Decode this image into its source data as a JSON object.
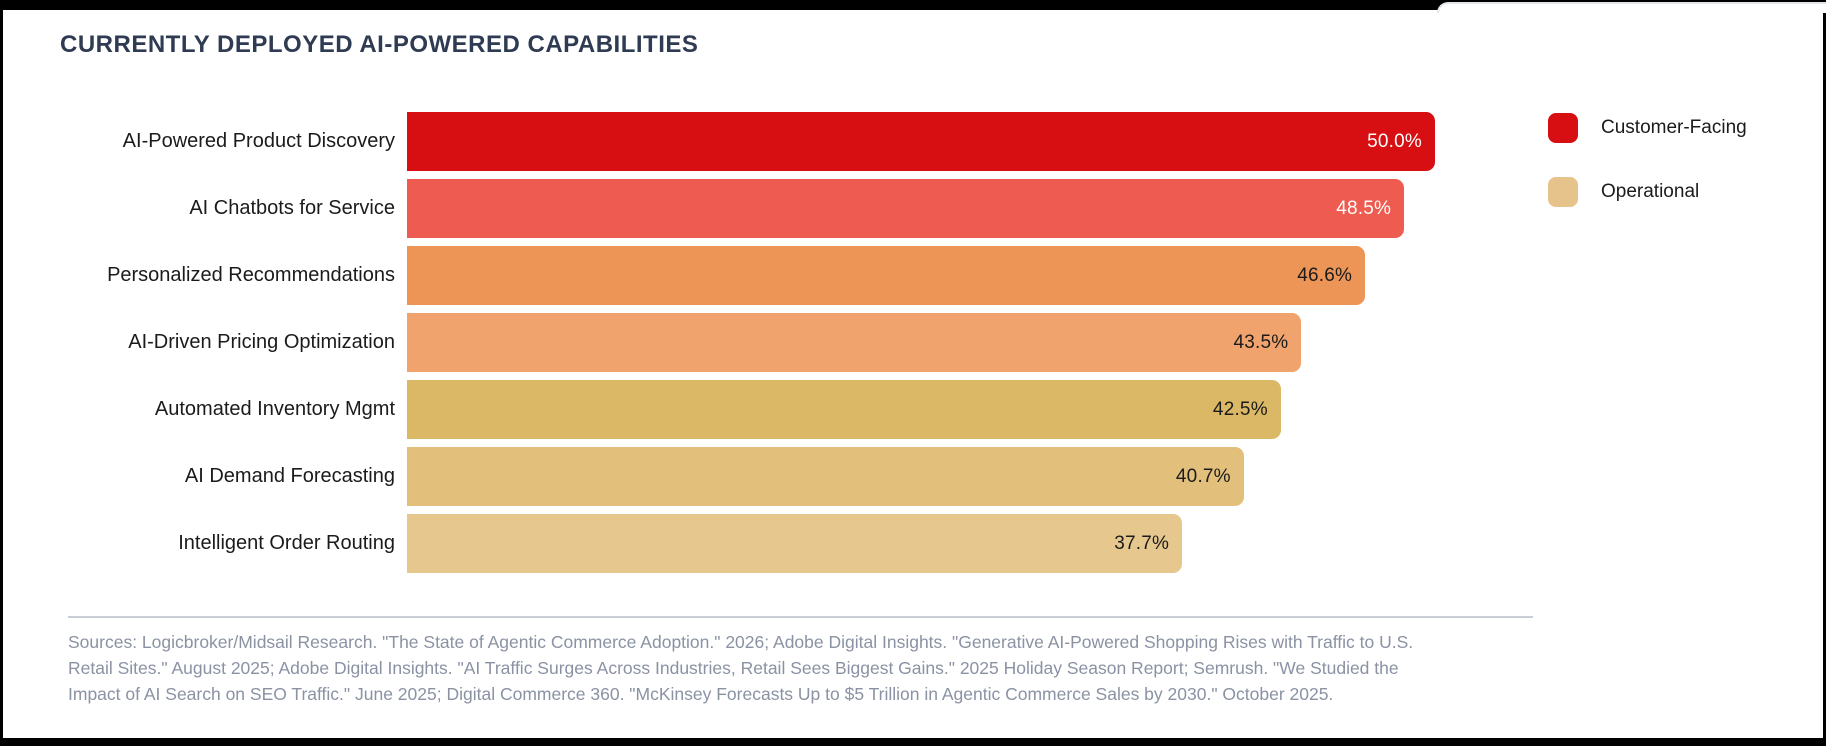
{
  "title": "CURRENTLY DEPLOYED AI-POWERED CAPABILITIES",
  "chart_data": {
    "type": "bar",
    "orientation": "horizontal",
    "title": "CURRENTLY DEPLOYED AI-POWERED CAPABILITIES",
    "value_unit": "%",
    "xlim": [
      0,
      55
    ],
    "grid": false,
    "categories": [
      "AI-Powered Product Discovery",
      "AI Chatbots for Service",
      "Personalized Recommendations",
      "AI-Driven Pricing Optimization",
      "Automated Inventory Mgmt",
      "AI Demand Forecasting",
      "Intelligent Order Routing"
    ],
    "values": [
      50.0,
      48.5,
      46.6,
      43.5,
      42.5,
      40.7,
      37.7
    ],
    "bars": [
      {
        "label": "AI-Powered Product Discovery",
        "value": 50.0,
        "value_label": "50.0%",
        "color": "#d70e12",
        "value_color": "#ffffff"
      },
      {
        "label": "AI Chatbots for Service",
        "value": 48.5,
        "value_label": "48.5%",
        "color": "#ee5b50",
        "value_color": "#ffffff"
      },
      {
        "label": "Personalized Recommendations",
        "value": 46.6,
        "value_label": "46.6%",
        "color": "#ec9557",
        "value_color": "#1b1b1b"
      },
      {
        "label": "AI-Driven Pricing Optimization",
        "value": 43.5,
        "value_label": "43.5%",
        "color": "#f0a36c",
        "value_color": "#1b1b1b"
      },
      {
        "label": "Automated Inventory Mgmt",
        "value": 42.5,
        "value_label": "42.5%",
        "color": "#dab866",
        "value_color": "#1b1b1b"
      },
      {
        "label": "AI Demand Forecasting",
        "value": 40.7,
        "value_label": "40.7%",
        "color": "#e2c07b",
        "value_color": "#1b1b1b"
      },
      {
        "label": "Intelligent Order Routing",
        "value": 37.7,
        "value_label": "37.7%",
        "color": "#e6c88f",
        "value_color": "#1b1b1b"
      }
    ],
    "legend": {
      "position": "top-right",
      "items": [
        {
          "label": "Customer-Facing",
          "color": "#d70e12"
        },
        {
          "label": "Operational",
          "color": "#e6c38b"
        }
      ]
    }
  },
  "sources": {
    "lines": [
      "Sources: Logicbroker/Midsail Research. \"The State of Agentic Commerce Adoption.\" 2026; Adobe Digital Insights. \"Generative AI-Powered Shopping Rises with Traffic to U.S.",
      "Retail Sites.\" August 2025; Adobe Digital Insights. \"AI Traffic Surges Across Industries, Retail Sees Biggest Gains.\" 2025 Holiday Season Report; Semrush. \"We Studied the",
      "Impact of AI Search on SEO Traffic.\" June 2025; Digital Commerce 360. \"McKinsey Forecasts Up to $5 Trillion in Agentic Commerce Sales by 2030.\" October 2025."
    ]
  },
  "colors": {
    "title_text": "#2f3b52",
    "label_text": "#1b1b1b",
    "source_text": "#8a92a3",
    "divider": "#c9cdd6",
    "frame": "#000000",
    "background": "#ffffff"
  }
}
